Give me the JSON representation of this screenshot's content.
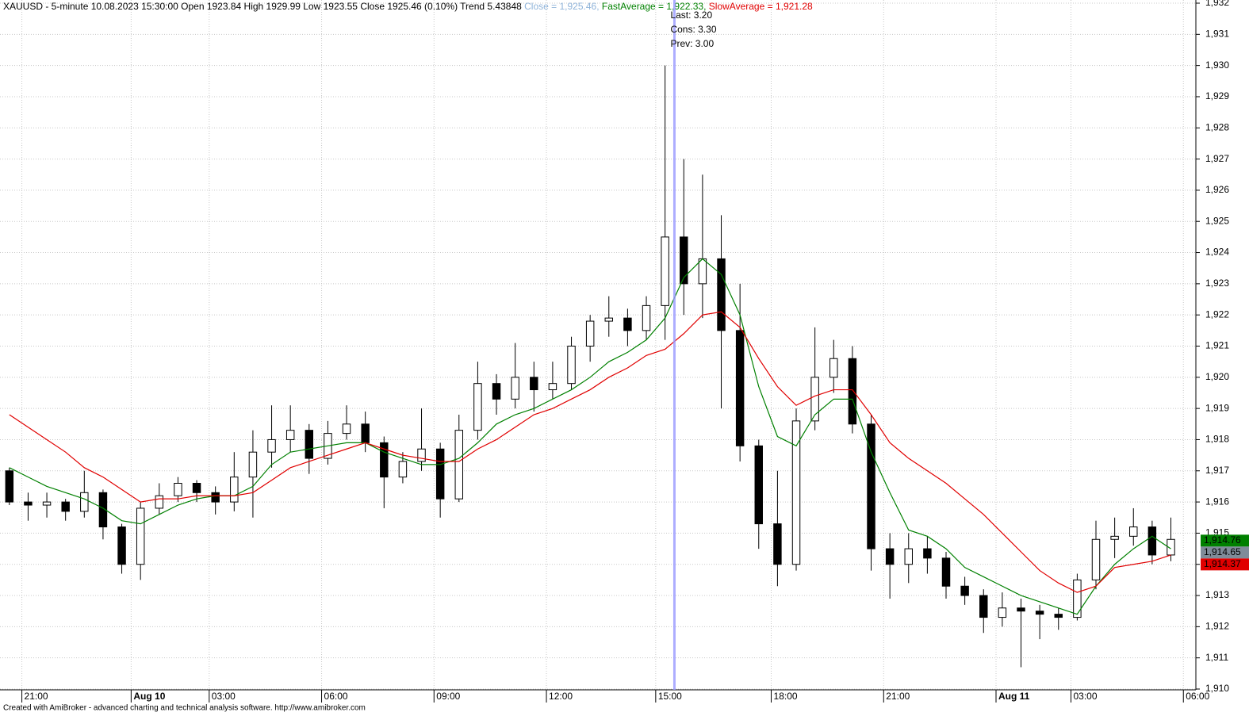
{
  "chart_data": {
    "type": "candlestick",
    "title": "XAUUSD - 5-minute 10.08.2023 15:30:00 Open 1923.84 High 1929.99 Low 1923.55 Close 1925.46 (0.10%) Trend 5.43848",
    "close_readout": {
      "name": "Close",
      "text": " = 1,925.46, ",
      "color": "#8fb3d9"
    },
    "x": [
      3,
      9,
      15,
      21,
      27,
      33,
      39,
      45,
      51,
      57,
      63,
      69,
      75,
      81,
      87,
      93,
      99,
      105,
      111,
      117,
      123,
      129,
      135,
      141,
      147,
      153,
      159,
      165,
      171,
      177,
      183,
      189,
      195,
      201,
      207,
      213,
      219,
      225,
      231,
      237,
      243,
      249,
      255,
      261,
      267,
      273,
      279,
      285,
      291,
      297,
      303,
      309,
      315,
      321,
      327,
      333,
      339,
      345,
      351,
      357,
      363,
      369,
      375
    ],
    "open": [
      1917.0,
      1916.0,
      1915.9,
      1916.0,
      1915.7,
      1916.3,
      1915.2,
      1914.0,
      1915.8,
      1916.2,
      1916.6,
      1916.3,
      1916.0,
      1916.8,
      1917.6,
      1918.0,
      1918.3,
      1917.4,
      1918.2,
      1918.5,
      1917.9,
      1916.8,
      1917.3,
      1917.7,
      1916.1,
      1918.3,
      1919.8,
      1919.3,
      1920.0,
      1919.6,
      1919.8,
      1921.0,
      1921.8,
      1921.9,
      1921.5,
      1922.3,
      1924.5,
      1923.0,
      1923.8,
      1921.5,
      1917.8,
      1915.3,
      1914.0,
      1918.6,
      1920.0,
      1920.6,
      1918.5,
      1914.5,
      1914.0,
      1914.5,
      1914.2,
      1913.3,
      1913.0,
      1912.3,
      1912.6,
      1912.5,
      1912.4,
      1912.3,
      1913.5,
      1914.8,
      1914.9,
      1915.2,
      1914.3
    ],
    "high": [
      1917.1,
      1916.3,
      1916.3,
      1916.1,
      1917.0,
      1916.4,
      1915.3,
      1916.0,
      1916.6,
      1916.8,
      1916.7,
      1916.5,
      1917.6,
      1918.3,
      1919.1,
      1919.1,
      1918.5,
      1918.6,
      1919.1,
      1918.9,
      1918.1,
      1917.6,
      1919.0,
      1917.9,
      1918.8,
      1920.5,
      1920.1,
      1921.1,
      1920.5,
      1920.5,
      1921.3,
      1922.0,
      1922.6,
      1922.2,
      1922.6,
      1930.0,
      1927.0,
      1926.5,
      1925.2,
      1923.0,
      1918.0,
      1917.0,
      1919.0,
      1921.6,
      1921.2,
      1921.0,
      1918.8,
      1915.0,
      1915.0,
      1914.9,
      1914.4,
      1913.6,
      1913.2,
      1913.1,
      1912.9,
      1912.7,
      1912.6,
      1913.7,
      1915.4,
      1915.5,
      1915.8,
      1915.4,
      1915.5
    ],
    "low": [
      1915.9,
      1915.4,
      1915.5,
      1915.4,
      1915.5,
      1914.8,
      1913.7,
      1913.5,
      1915.6,
      1916.0,
      1916.0,
      1915.6,
      1915.7,
      1915.5,
      1917.1,
      1917.6,
      1916.9,
      1917.2,
      1918.0,
      1917.6,
      1915.8,
      1916.6,
      1917.0,
      1915.5,
      1916.0,
      1918.0,
      1918.8,
      1919.0,
      1918.9,
      1919.3,
      1919.6,
      1920.5,
      1921.3,
      1921.0,
      1921.2,
      1921.2,
      1922.0,
      1921.9,
      1919.0,
      1917.3,
      1914.5,
      1913.3,
      1913.8,
      1918.3,
      1919.5,
      1918.2,
      1913.8,
      1912.9,
      1913.4,
      1913.7,
      1912.9,
      1912.7,
      1911.8,
      1912.0,
      1910.7,
      1911.6,
      1911.9,
      1912.2,
      1913.2,
      1914.2,
      1914.6,
      1914.0,
      1914.1
    ],
    "close": [
      1916.0,
      1915.9,
      1916.0,
      1915.7,
      1916.3,
      1915.2,
      1914.0,
      1915.8,
      1916.2,
      1916.6,
      1916.3,
      1916.0,
      1916.8,
      1917.6,
      1918.0,
      1918.3,
      1917.4,
      1918.2,
      1918.5,
      1917.9,
      1916.8,
      1917.3,
      1917.7,
      1916.1,
      1918.3,
      1919.8,
      1919.3,
      1920.0,
      1919.6,
      1919.8,
      1921.0,
      1921.8,
      1921.9,
      1921.5,
      1922.3,
      1924.5,
      1923.0,
      1923.8,
      1921.5,
      1917.8,
      1915.3,
      1914.0,
      1918.6,
      1920.0,
      1920.6,
      1918.5,
      1914.5,
      1914.0,
      1914.5,
      1914.2,
      1913.3,
      1913.0,
      1912.3,
      1912.6,
      1912.5,
      1912.4,
      1912.3,
      1913.5,
      1914.8,
      1914.9,
      1915.2,
      1914.3,
      1914.8
    ],
    "series": [
      {
        "name": "FastAverage",
        "text": " = 1,922.33, ",
        "color": "#008000",
        "values": [
          1917.1,
          1916.8,
          1916.5,
          1916.3,
          1916.1,
          1915.8,
          1915.4,
          1915.3,
          1915.6,
          1915.9,
          1916.1,
          1916.2,
          1916.2,
          1916.5,
          1917.2,
          1917.6,
          1917.7,
          1917.8,
          1917.9,
          1917.9,
          1917.6,
          1917.4,
          1917.2,
          1917.2,
          1917.4,
          1917.9,
          1918.5,
          1918.8,
          1919.0,
          1919.3,
          1919.6,
          1920.0,
          1920.5,
          1920.8,
          1921.2,
          1921.9,
          1923.2,
          1923.8,
          1923.3,
          1922.0,
          1919.7,
          1918.1,
          1917.8,
          1918.8,
          1919.3,
          1919.3,
          1917.6,
          1916.3,
          1915.1,
          1914.9,
          1914.5,
          1913.9,
          1913.6,
          1913.3,
          1913.0,
          1912.8,
          1912.6,
          1912.4,
          1913.3,
          1914.0,
          1914.5,
          1914.9,
          1914.5
        ]
      },
      {
        "name": "SlowAverage",
        "text": " = 1,921.28",
        "color": "#e00000",
        "values": [
          1918.8,
          1918.4,
          1918.0,
          1917.6,
          1917.1,
          1916.8,
          1916.4,
          1916.0,
          1916.1,
          1916.1,
          1916.2,
          1916.2,
          1916.2,
          1916.3,
          1916.7,
          1917.1,
          1917.3,
          1917.5,
          1917.7,
          1917.9,
          1917.7,
          1917.5,
          1917.4,
          1917.3,
          1917.3,
          1917.7,
          1918.0,
          1918.4,
          1918.8,
          1919.0,
          1919.3,
          1919.6,
          1920.0,
          1920.3,
          1920.7,
          1920.9,
          1921.4,
          1922.0,
          1922.1,
          1921.6,
          1920.6,
          1919.7,
          1919.1,
          1919.4,
          1919.6,
          1919.6,
          1918.8,
          1917.9,
          1917.4,
          1917.0,
          1916.6,
          1916.1,
          1915.6,
          1915.0,
          1914.4,
          1913.8,
          1913.4,
          1913.1,
          1913.3,
          1913.9,
          1914.0,
          1914.1,
          1914.3
        ]
      }
    ],
    "xlim": [
      0,
      383
    ],
    "xticks": [
      {
        "value": 7,
        "label": "21:00"
      },
      {
        "value": 42,
        "label": "Aug 10"
      },
      {
        "value": 67,
        "label": "03:00"
      },
      {
        "value": 103,
        "label": "06:00"
      },
      {
        "value": 139,
        "label": "09:00"
      },
      {
        "value": 175,
        "label": "12:00"
      },
      {
        "value": 210,
        "label": "15:00"
      },
      {
        "value": 247,
        "label": "18:00"
      },
      {
        "value": 283,
        "label": "21:00"
      },
      {
        "value": 319,
        "label": "Aug 11"
      },
      {
        "value": 343,
        "label": "03:00"
      },
      {
        "value": 379,
        "label": "06:00"
      }
    ],
    "ylim": [
      1910,
      1932
    ],
    "yticks": [
      {
        "value": 1910,
        "label": "1,910"
      },
      {
        "value": 1911,
        "label": "1,911"
      },
      {
        "value": 1912,
        "label": "1,912"
      },
      {
        "value": 1913,
        "label": "1,913"
      },
      {
        "value": 1914,
        "label": "1,914"
      },
      {
        "value": 1915,
        "label": "1,915"
      },
      {
        "value": 1916,
        "label": "1,916"
      },
      {
        "value": 1917,
        "label": "1,917"
      },
      {
        "value": 1918,
        "label": "1,918"
      },
      {
        "value": 1919,
        "label": "1,919"
      },
      {
        "value": 1920,
        "label": "1,920"
      },
      {
        "value": 1921,
        "label": "1,921"
      },
      {
        "value": 1922,
        "label": "1,922"
      },
      {
        "value": 1923,
        "label": "1,923"
      },
      {
        "value": 1924,
        "label": "1,924"
      },
      {
        "value": 1925,
        "label": "1,925"
      },
      {
        "value": 1926,
        "label": "1,926"
      },
      {
        "value": 1927,
        "label": "1,927"
      },
      {
        "value": 1928,
        "label": "1,928"
      },
      {
        "value": 1929,
        "label": "1,929"
      },
      {
        "value": 1930,
        "label": "1,930"
      },
      {
        "value": 1931,
        "label": "1,931"
      },
      {
        "value": 1932,
        "label": "1,932"
      }
    ],
    "grid": true,
    "cursor": {
      "x": 216,
      "color": "#9999ff",
      "annotations_color": "#2e8b2e",
      "annotations": [
        "Last: 3.20",
        "Cons: 3.30",
        "Prev: 3.00"
      ]
    },
    "price_tags": [
      {
        "value": 1914.76,
        "label": "1,914.76",
        "color": "#008000"
      },
      {
        "value": 1914.65,
        "label": "1,914.65",
        "color": "#7f8c99"
      },
      {
        "value": 1914.37,
        "label": "1,914.37",
        "color": "#e00000"
      }
    ],
    "footer": "Created with AmiBroker - advanced charting and technical analysis software. http://www.amibroker.com"
  }
}
